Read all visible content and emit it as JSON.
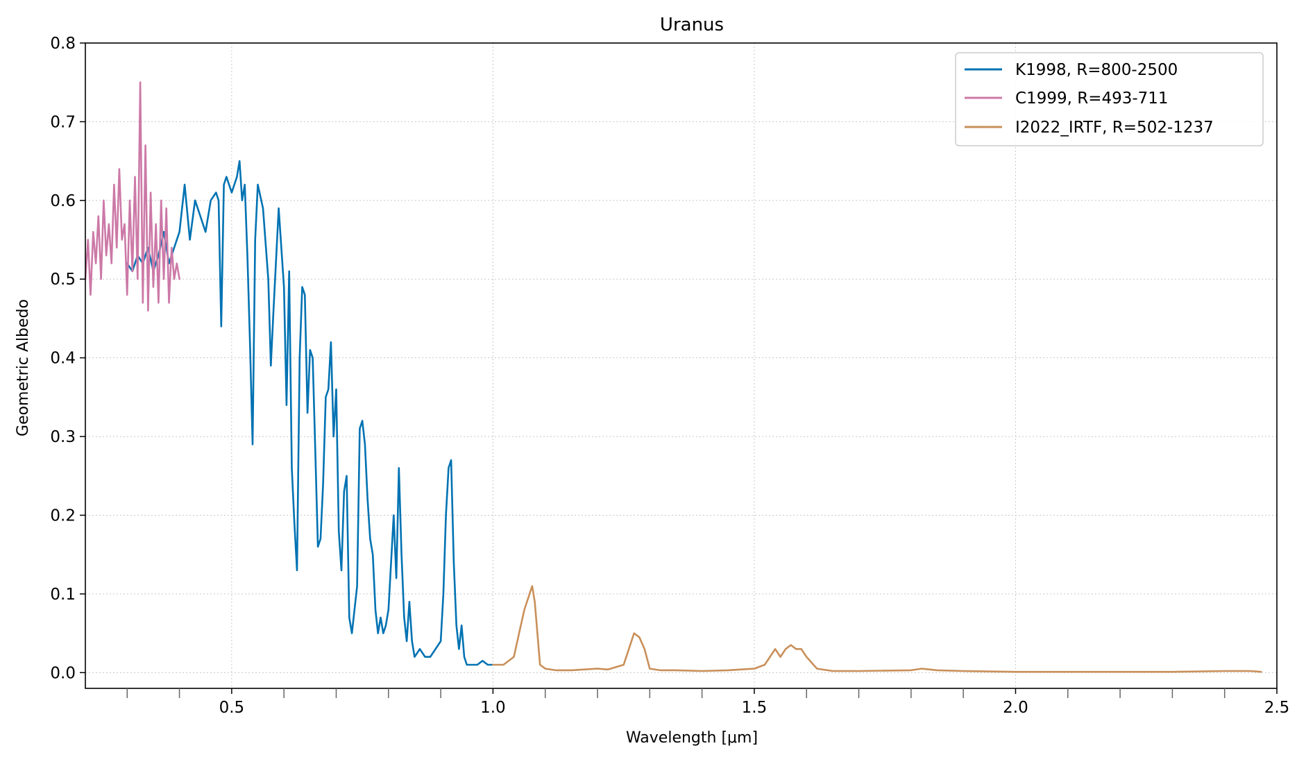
{
  "chart_data": {
    "type": "line",
    "title": "Uranus",
    "xlabel": "Wavelength [μm]",
    "ylabel": "Geometric Albedo",
    "xlim": [
      0.22,
      2.5
    ],
    "ylim": [
      -0.02,
      0.8
    ],
    "grid": true,
    "legend_position": "top-right",
    "x_ticks": [
      0.5,
      1.0,
      1.5,
      2.0,
      2.5
    ],
    "x_tick_labels": [
      "0.5",
      "1.0",
      "1.5",
      "2.0",
      "2.5"
    ],
    "x_minor_ticks": [
      0.3,
      0.4,
      0.6,
      0.7,
      0.8,
      0.9,
      1.1,
      1.2,
      1.3,
      1.4,
      1.6,
      1.7,
      1.8,
      1.9,
      2.1,
      2.2,
      2.3,
      2.4
    ],
    "y_ticks": [
      0.0,
      0.1,
      0.2,
      0.3,
      0.4,
      0.5,
      0.6,
      0.7,
      0.8
    ],
    "y_tick_labels": [
      "0.0",
      "0.1",
      "0.2",
      "0.3",
      "0.4",
      "0.5",
      "0.6",
      "0.7",
      "0.8"
    ],
    "series": [
      {
        "name": "K1998, R=800-2500",
        "color": "#0072b2",
        "x": [
          0.3,
          0.31,
          0.32,
          0.33,
          0.34,
          0.35,
          0.36,
          0.37,
          0.38,
          0.39,
          0.4,
          0.41,
          0.42,
          0.43,
          0.44,
          0.45,
          0.46,
          0.47,
          0.475,
          0.48,
          0.485,
          0.49,
          0.5,
          0.51,
          0.515,
          0.52,
          0.525,
          0.53,
          0.535,
          0.54,
          0.545,
          0.55,
          0.56,
          0.57,
          0.575,
          0.58,
          0.59,
          0.6,
          0.605,
          0.61,
          0.615,
          0.62,
          0.625,
          0.63,
          0.635,
          0.64,
          0.645,
          0.65,
          0.655,
          0.66,
          0.665,
          0.67,
          0.675,
          0.68,
          0.685,
          0.69,
          0.695,
          0.7,
          0.705,
          0.71,
          0.715,
          0.72,
          0.725,
          0.73,
          0.74,
          0.745,
          0.75,
          0.755,
          0.76,
          0.765,
          0.77,
          0.775,
          0.78,
          0.785,
          0.79,
          0.795,
          0.8,
          0.81,
          0.815,
          0.82,
          0.825,
          0.83,
          0.835,
          0.84,
          0.845,
          0.85,
          0.86,
          0.87,
          0.88,
          0.89,
          0.9,
          0.905,
          0.91,
          0.915,
          0.92,
          0.925,
          0.93,
          0.935,
          0.94,
          0.945,
          0.95,
          0.955,
          0.96,
          0.965,
          0.97,
          0.98,
          0.99,
          1.0
        ],
        "values": [
          0.52,
          0.51,
          0.53,
          0.52,
          0.54,
          0.51,
          0.53,
          0.56,
          0.52,
          0.54,
          0.56,
          0.62,
          0.55,
          0.6,
          0.58,
          0.56,
          0.6,
          0.61,
          0.6,
          0.44,
          0.62,
          0.63,
          0.61,
          0.63,
          0.65,
          0.6,
          0.62,
          0.53,
          0.42,
          0.29,
          0.55,
          0.62,
          0.59,
          0.5,
          0.39,
          0.46,
          0.59,
          0.49,
          0.34,
          0.51,
          0.26,
          0.19,
          0.13,
          0.4,
          0.49,
          0.48,
          0.33,
          0.41,
          0.4,
          0.28,
          0.16,
          0.17,
          0.24,
          0.35,
          0.36,
          0.42,
          0.3,
          0.36,
          0.18,
          0.13,
          0.23,
          0.25,
          0.07,
          0.05,
          0.11,
          0.31,
          0.32,
          0.29,
          0.22,
          0.17,
          0.15,
          0.08,
          0.05,
          0.07,
          0.05,
          0.06,
          0.08,
          0.2,
          0.12,
          0.26,
          0.15,
          0.07,
          0.04,
          0.09,
          0.04,
          0.02,
          0.03,
          0.02,
          0.02,
          0.03,
          0.04,
          0.1,
          0.2,
          0.26,
          0.27,
          0.14,
          0.06,
          0.03,
          0.06,
          0.02,
          0.01,
          0.01,
          0.01,
          0.01,
          0.01,
          0.015,
          0.01,
          0.01
        ]
      },
      {
        "name": "C1999, R=493-711",
        "color": "#cc79a7",
        "x": [
          0.22,
          0.225,
          0.23,
          0.235,
          0.24,
          0.245,
          0.25,
          0.255,
          0.26,
          0.265,
          0.27,
          0.275,
          0.28,
          0.285,
          0.29,
          0.295,
          0.3,
          0.305,
          0.31,
          0.315,
          0.32,
          0.325,
          0.33,
          0.335,
          0.34,
          0.345,
          0.35,
          0.355,
          0.36,
          0.365,
          0.37,
          0.375,
          0.38,
          0.385,
          0.39,
          0.395,
          0.4
        ],
        "values": [
          0.5,
          0.55,
          0.48,
          0.56,
          0.52,
          0.58,
          0.5,
          0.6,
          0.53,
          0.57,
          0.52,
          0.62,
          0.54,
          0.64,
          0.55,
          0.57,
          0.48,
          0.6,
          0.51,
          0.63,
          0.5,
          0.75,
          0.47,
          0.67,
          0.46,
          0.61,
          0.49,
          0.57,
          0.47,
          0.6,
          0.5,
          0.59,
          0.47,
          0.54,
          0.5,
          0.52,
          0.5
        ]
      },
      {
        "name": "I2022_IRTF, R=502-1237",
        "color": "#c98f59",
        "x": [
          1.0,
          1.02,
          1.04,
          1.05,
          1.06,
          1.07,
          1.075,
          1.08,
          1.09,
          1.1,
          1.12,
          1.15,
          1.2,
          1.22,
          1.25,
          1.26,
          1.27,
          1.28,
          1.29,
          1.3,
          1.32,
          1.35,
          1.4,
          1.45,
          1.5,
          1.52,
          1.53,
          1.54,
          1.55,
          1.56,
          1.57,
          1.58,
          1.59,
          1.6,
          1.62,
          1.65,
          1.7,
          1.8,
          1.82,
          1.85,
          1.9,
          2.0,
          2.1,
          2.2,
          2.3,
          2.4,
          2.45,
          2.47
        ],
        "values": [
          0.01,
          0.01,
          0.02,
          0.05,
          0.08,
          0.1,
          0.11,
          0.09,
          0.01,
          0.005,
          0.003,
          0.003,
          0.005,
          0.004,
          0.01,
          0.03,
          0.05,
          0.045,
          0.03,
          0.005,
          0.003,
          0.003,
          0.002,
          0.003,
          0.005,
          0.01,
          0.02,
          0.03,
          0.02,
          0.03,
          0.035,
          0.03,
          0.03,
          0.02,
          0.005,
          0.002,
          0.002,
          0.003,
          0.005,
          0.003,
          0.002,
          0.001,
          0.001,
          0.001,
          0.001,
          0.002,
          0.002,
          0.001
        ]
      }
    ]
  }
}
